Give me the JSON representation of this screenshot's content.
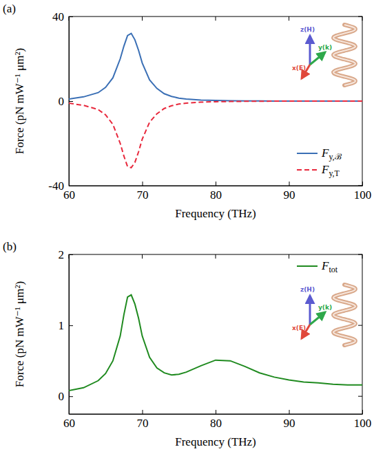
{
  "chart_data": [
    {
      "type": "line",
      "title": "(a)",
      "x_label": "Frequency (THz)",
      "y_label": "Force (pN mW⁻¹ μm²)",
      "x": [
        60,
        62,
        64,
        65,
        66,
        67,
        67.5,
        68,
        68.5,
        69,
        69.5,
        70,
        71,
        72,
        73,
        74,
        75,
        76,
        78,
        80,
        82,
        84,
        86,
        88,
        90,
        92,
        94,
        96,
        98,
        100
      ],
      "xlim": [
        60,
        100
      ],
      "xticks": [
        60,
        70,
        80,
        90,
        100
      ],
      "ylim": [
        -40,
        40
      ],
      "yticks": [
        -40,
        0,
        40
      ],
      "legend": "lower right",
      "annotations": [
        "z(H)",
        "y(k)",
        "x(E)"
      ],
      "series": [
        {
          "name": "Fy,ℬ",
          "color": "#3a6fb5",
          "line_style": "solid",
          "values": [
            1,
            2,
            4,
            6.5,
            11,
            20,
            26,
            31,
            32,
            29,
            24,
            18,
            10,
            6,
            3.5,
            2.2,
            1.4,
            1,
            0.5,
            0.3,
            0.2,
            0.1,
            0.1,
            0,
            0,
            0,
            0,
            0,
            0,
            0
          ]
        },
        {
          "name": "Fy,T",
          "color": "#e8283c",
          "line_style": "dashed",
          "values": [
            -1,
            -2,
            -4,
            -6.5,
            -11,
            -20,
            -26,
            -31,
            -31.5,
            -29,
            -24,
            -18,
            -10,
            -6,
            -3.5,
            -2.2,
            -1.4,
            -1,
            -0.5,
            -0.3,
            -0.2,
            -0.1,
            -0.1,
            0,
            0,
            0,
            0,
            0,
            0,
            0
          ]
        }
      ]
    },
    {
      "type": "line",
      "title": "(b)",
      "x_label": "Frequency (THz)",
      "y_label": "Force (pN mW⁻¹ μm²)",
      "x": [
        60,
        62,
        64,
        65,
        66,
        67,
        67.5,
        68,
        68.5,
        69,
        69.5,
        70,
        71,
        72,
        73,
        74,
        75,
        76,
        78,
        80,
        82,
        84,
        86,
        88,
        90,
        92,
        94,
        96,
        98,
        100
      ],
      "xlim": [
        60,
        100
      ],
      "xticks": [
        60,
        70,
        80,
        90,
        100
      ],
      "ylim": [
        -0.25,
        2
      ],
      "yticks": [
        0,
        1,
        2
      ],
      "legend": "upper right",
      "annotations": [
        "z(H)",
        "y(k)",
        "x(E)"
      ],
      "series": [
        {
          "name": "Ftot",
          "color": "#1f8a1f",
          "line_style": "solid",
          "values": [
            0.08,
            0.12,
            0.22,
            0.32,
            0.5,
            0.85,
            1.15,
            1.4,
            1.43,
            1.3,
            1.1,
            0.85,
            0.55,
            0.4,
            0.33,
            0.3,
            0.31,
            0.34,
            0.43,
            0.51,
            0.5,
            0.42,
            0.33,
            0.27,
            0.23,
            0.2,
            0.19,
            0.17,
            0.16,
            0.16
          ]
        }
      ]
    }
  ]
}
